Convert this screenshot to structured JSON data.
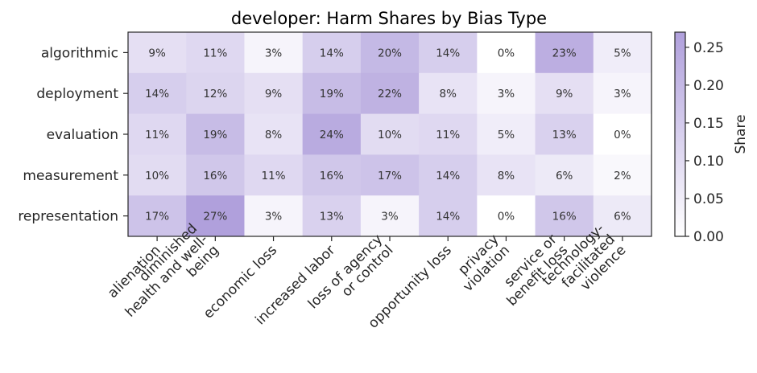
{
  "chart_data": {
    "type": "heatmap",
    "title": "developer: Harm Shares by Bias Type",
    "xlabel": "",
    "ylabel": "",
    "rows": [
      "algorithmic",
      "deployment",
      "evaluation",
      "measurement",
      "representation"
    ],
    "columns": [
      [
        "alienation"
      ],
      [
        "diminished",
        "health and well-",
        "being"
      ],
      [
        "economic loss"
      ],
      [
        "increased labor"
      ],
      [
        "loss of agency",
        "or control"
      ],
      [
        "opportunity loss"
      ],
      [
        "privacy",
        "violation"
      ],
      [
        "service or",
        "benefit loss"
      ],
      [
        "technology-",
        "facilitated",
        "violence"
      ]
    ],
    "values": [
      [
        0.09,
        0.11,
        0.03,
        0.14,
        0.2,
        0.14,
        0.0,
        0.23,
        0.05
      ],
      [
        0.14,
        0.12,
        0.09,
        0.19,
        0.22,
        0.08,
        0.03,
        0.09,
        0.03
      ],
      [
        0.11,
        0.19,
        0.08,
        0.24,
        0.1,
        0.11,
        0.05,
        0.13,
        0.0
      ],
      [
        0.1,
        0.16,
        0.11,
        0.16,
        0.17,
        0.14,
        0.08,
        0.06,
        0.02
      ],
      [
        0.17,
        0.27,
        0.03,
        0.13,
        0.03,
        0.14,
        0.0,
        0.16,
        0.06
      ]
    ],
    "cell_labels": [
      [
        "9%",
        "11%",
        "3%",
        "14%",
        "20%",
        "14%",
        "0%",
        "23%",
        "5%"
      ],
      [
        "14%",
        "12%",
        "9%",
        "19%",
        "22%",
        "8%",
        "3%",
        "9%",
        "3%"
      ],
      [
        "11%",
        "19%",
        "8%",
        "24%",
        "10%",
        "11%",
        "5%",
        "13%",
        "0%"
      ],
      [
        "10%",
        "16%",
        "11%",
        "16%",
        "17%",
        "14%",
        "8%",
        "6%",
        "2%"
      ],
      [
        "17%",
        "27%",
        "3%",
        "13%",
        "3%",
        "14%",
        "0%",
        "16%",
        "6%"
      ]
    ],
    "colorbar": {
      "label": "Share",
      "range": [
        0,
        0.27
      ],
      "ticks": [
        0.0,
        0.05,
        0.1,
        0.15,
        0.2,
        0.25
      ],
      "tick_labels": [
        "0.00",
        "0.05",
        "0.10",
        "0.15",
        "0.20",
        "0.25"
      ],
      "color_low": "#ffffff",
      "color_high": "#b0a0dc"
    }
  }
}
